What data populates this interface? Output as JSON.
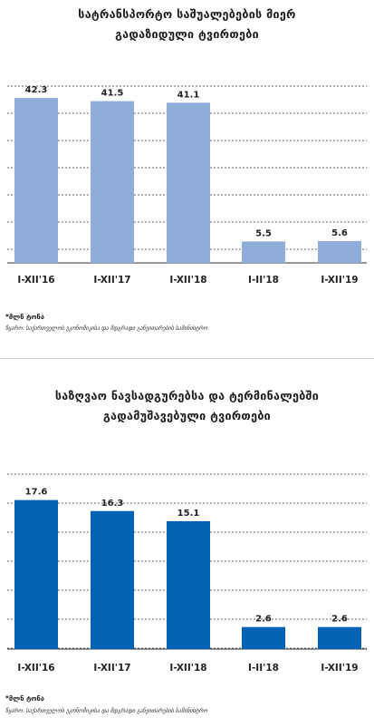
{
  "charts": [
    {
      "title_line1": "სატრანსპორტო საშუალებების მიერ",
      "title_line2": "გადაზიდული ტვირთები",
      "note": "*მლნ ტონა",
      "source": "წყარო: საქართველოს ეკონომიკისა და მდგრადი განვითარების სამინისტრო",
      "bar_color": "#8eadd9"
    },
    {
      "title_line1": "საზღვაო ნავსადგურებსა და ტერმინალებში",
      "title_line2": "გადამუშავებული ტვირთები",
      "note": "*მლნ ტონა",
      "source": "წყარო: საქართველოს ეკონომიკისა და მდგრადი განვითარების სამინისტრო",
      "bar_color": "#0563b5"
    }
  ],
  "chart_data": [
    {
      "type": "bar",
      "categories": [
        "I-XII'16",
        "I-XII'17",
        "I-XII'18",
        "I-II'18",
        "I-XII'19"
      ],
      "values": [
        42.3,
        41.5,
        41.1,
        5.5,
        5.6
      ],
      "value_labels": [
        "42.3",
        "41.5",
        "41.1",
        "5.5",
        "5.6"
      ],
      "title": "სატრანსპორტო საშუალებების მიერ გადაზიდული ტვირთები",
      "ylim": [
        0,
        50
      ],
      "grid": true
    },
    {
      "type": "bar",
      "categories": [
        "I-XII'16",
        "I-XII'17",
        "I-XII'18",
        "I-II'18",
        "I-XII'19"
      ],
      "values": [
        17.6,
        16.3,
        15.1,
        2.6,
        2.6
      ],
      "value_labels": [
        "17.6",
        "16.3",
        "15.1",
        "2.6",
        "2.6"
      ],
      "title": "საზღვაო ნავსადგურებსა და ტერმინალებში გადამუშავებული ტვირთები",
      "ylim": [
        0,
        21.2
      ],
      "grid": true
    }
  ]
}
